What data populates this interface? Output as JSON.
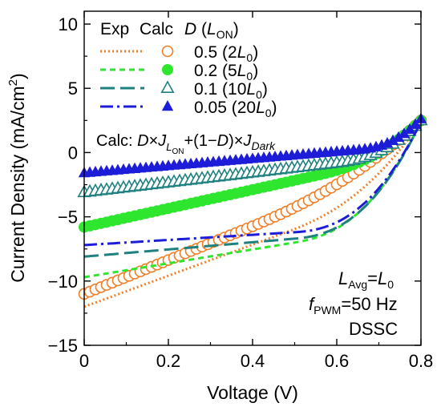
{
  "chart_data": {
    "type": "line",
    "xlabel": "Voltage (V)",
    "ylabel": "Current Density (mA/cm²)",
    "xlim": [
      0,
      0.8
    ],
    "ylim": [
      -15,
      11
    ],
    "xticks": [
      0,
      0.2,
      0.4,
      0.6,
      0.8
    ],
    "yticks": [
      -15,
      -10,
      -5,
      0,
      5,
      10
    ],
    "xtick_labels": [
      "0",
      "0.2",
      "0.4",
      "0.6",
      "0.8"
    ],
    "ytick_labels": [
      "−15",
      "−10",
      "−5",
      "0",
      "5",
      "10"
    ],
    "grid": false,
    "legend_position": "top-left",
    "legend_header": {
      "exp": "Exp",
      "calc": "Calc",
      "d": "D",
      "lon": "(L",
      "lon_sub": "ON",
      "close": ")"
    },
    "series": [
      {
        "key": "s05",
        "d": "0.5",
        "factor": "2",
        "color": "#F07E26",
        "marker": "circle-open",
        "dash": "dotted",
        "exp": {
          "jsc": -11.0,
          "knee_v": 0.38,
          "knee_j": -6.0,
          "voc_j": 2.5
        },
        "calc": {
          "jsc": -12.0,
          "knee_v": 0.48,
          "knee_j": -6.2,
          "voc_j": 2.4
        }
      },
      {
        "key": "s02",
        "d": "0.2",
        "factor": "5",
        "color": "#2EE62E",
        "marker": "circle-filled",
        "dash": "short",
        "exp": {
          "jsc": -5.8,
          "knee_v": 0.55,
          "knee_j": -1.8,
          "voc_j": 2.5
        },
        "calc": {
          "jsc": -9.7,
          "knee_v": 0.5,
          "knee_j": -7.0,
          "voc_j": 2.4
        }
      },
      {
        "key": "s01",
        "d": "0.1",
        "factor": "10",
        "color": "#1F8080",
        "marker": "triangle-open",
        "dash": "long",
        "exp": {
          "jsc": -3.1,
          "knee_v": 0.6,
          "knee_j": -0.8,
          "voc_j": 2.5
        },
        "calc": {
          "jsc": -8.1,
          "knee_v": 0.5,
          "knee_j": -6.7,
          "voc_j": 2.4
        }
      },
      {
        "key": "s005",
        "d": "0.05",
        "factor": "20",
        "color": "#1C1CD9",
        "marker": "triangle-filled",
        "dash": "dashdot",
        "exp": {
          "jsc": -1.6,
          "knee_v": 0.65,
          "knee_j": 0.2,
          "voc_j": 2.6
        },
        "calc": {
          "jsc": -7.2,
          "knee_v": 0.5,
          "knee_j": -6.2,
          "voc_j": 2.4
        }
      }
    ],
    "formula": {
      "prefix": "Calc: ",
      "d": "D",
      "times": "×",
      "j": "J",
      "l": "L",
      "on": "ON",
      "middle": "+(1−",
      "end": ")×",
      "dark": "Dark"
    },
    "annotations": {
      "lavg": "L",
      "lavg_sub": "Avg",
      "lavg_eq": "=",
      "l0": "L",
      "l0_sub": "0",
      "fpwm": "f",
      "fpwm_sub": "PWM",
      "fpwm_val": "=50 Hz",
      "device": "DSSC"
    }
  }
}
